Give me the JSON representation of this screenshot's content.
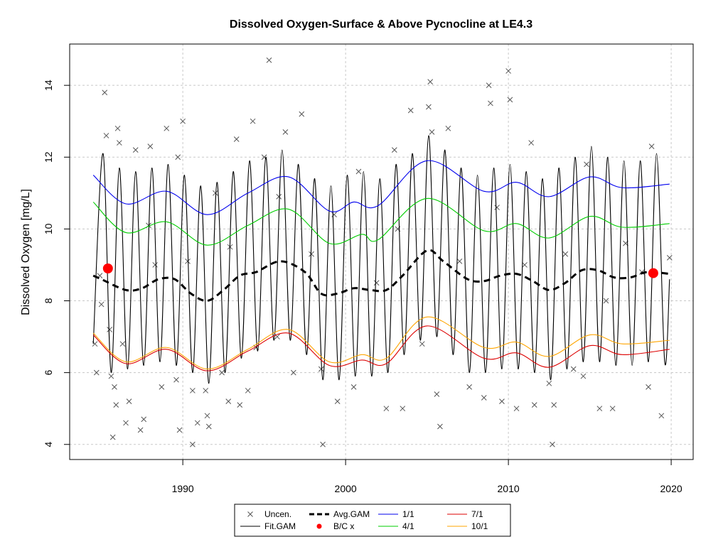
{
  "chart_data": {
    "type": "line",
    "title": "Dissolved Oxygen-Surface & Above Pycnocline at LE4.3",
    "y_label": "Dissolved Oxygen [mg/L]",
    "xlim": [
      1983.05,
      2021.35
    ],
    "ylim": [
      3.58,
      15.15
    ],
    "xticks": [
      1990,
      2000,
      2010,
      2020
    ],
    "yticks": [
      4,
      6,
      8,
      10,
      12,
      14
    ],
    "grid": true,
    "legend": "bottom",
    "series": [
      {
        "name": "Uncen.",
        "style": "points",
        "color": "#555555",
        "x": [
          1984.6,
          1984.7,
          1984.9,
          1985.0,
          1985.2,
          1985.3,
          1985.5,
          1985.6,
          1985.7,
          1985.8,
          1985.9,
          1986.0,
          1986.1,
          1986.3,
          1986.5,
          1986.7,
          1987.1,
          1987.4,
          1987.6,
          1988.0,
          1988.3,
          1988.7,
          1989.0,
          1989.6,
          1989.8,
          1989.7,
          1990.0,
          1990.6,
          1990.9,
          1990.6,
          1991.4,
          1991.5,
          1991.6,
          1992.0,
          1992.4,
          1992.8,
          1993.3,
          1993.5,
          1994.0,
          1994.3,
          1994.5,
          1995.0,
          1995.3,
          1995.8,
          1996.3,
          1996.8,
          1997.3,
          1998.5,
          1998.6,
          1999.5,
          2000.5,
          2000.8,
          2002.5,
          2003.0,
          2003.5,
          2004.0,
          2004.7,
          2005.1,
          2005.2,
          2005.3,
          2005.6,
          2005.8,
          2006.3,
          2007.6,
          2008.5,
          2008.8,
          2008.9,
          2009.6,
          2010.0,
          2010.1,
          2010.5,
          2011.4,
          2011.6,
          2012.5,
          2012.7,
          2012.8,
          2014.0,
          2014.6,
          2014.8,
          2015.6,
          2016.4,
          2018.2,
          2018.6,
          2018.8,
          2019.4,
          2019.9,
          1987.9,
          1992.9,
          1997.9,
          2001.9,
          2007.0,
          2011.0,
          2016.0,
          1999.3,
          2009.3,
          2003.2,
          1995.9,
          1990.3,
          2013.5,
          2017.2
        ],
        "values": [
          6.8,
          6.0,
          8.7,
          7.9,
          13.8,
          12.6,
          7.2,
          5.9,
          4.2,
          5.6,
          5.1,
          12.8,
          12.4,
          6.8,
          4.6,
          5.2,
          12.2,
          4.4,
          4.7,
          12.3,
          9.0,
          5.6,
          12.8,
          5.8,
          4.4,
          12.0,
          13.0,
          5.5,
          4.6,
          4.0,
          5.5,
          4.8,
          4.5,
          11.0,
          6.0,
          5.2,
          12.5,
          5.1,
          5.5,
          13.0,
          6.7,
          12.0,
          14.7,
          7.0,
          12.7,
          6.0,
          13.2,
          6.1,
          4.0,
          5.2,
          5.6,
          11.6,
          5.0,
          12.2,
          5.0,
          13.3,
          6.8,
          13.4,
          14.1,
          12.7,
          5.4,
          4.5,
          12.8,
          5.6,
          5.3,
          14.0,
          13.5,
          5.2,
          14.4,
          13.6,
          5.0,
          12.4,
          5.1,
          5.7,
          4.0,
          5.1,
          6.1,
          5.9,
          11.8,
          5.0,
          5.0,
          8.8,
          5.6,
          12.3,
          4.8,
          9.2,
          10.1,
          9.5,
          9.3,
          8.5,
          9.1,
          9.0,
          8.0,
          10.4,
          10.6,
          10.0,
          10.9,
          9.1,
          9.3,
          9.6
        ]
      },
      {
        "name": "Fit.GAM",
        "style": "line",
        "color": "#000000",
        "x": [
          1984.5,
          1985.1,
          1985.6,
          1986.1,
          1986.6,
          1987.1,
          1987.6,
          1988.1,
          1988.6,
          1989.1,
          1989.6,
          1990.1,
          1990.6,
          1991.1,
          1991.6,
          1992.1,
          1992.6,
          1993.1,
          1993.6,
          1994.1,
          1994.6,
          1995.1,
          1995.6,
          1996.1,
          1996.6,
          1997.1,
          1997.6,
          1998.1,
          1998.6,
          1999.1,
          1999.6,
          2000.1,
          2000.6,
          2001.1,
          2001.6,
          2002.1,
          2002.6,
          2003.1,
          2003.6,
          2004.1,
          2004.6,
          2005.1,
          2005.6,
          2006.1,
          2006.6,
          2007.1,
          2007.6,
          2008.1,
          2008.6,
          2009.1,
          2009.6,
          2010.1,
          2010.6,
          2011.1,
          2011.6,
          2012.1,
          2012.6,
          2013.1,
          2013.6,
          2014.1,
          2014.6,
          2015.1,
          2015.6,
          2016.1,
          2016.6,
          2017.1,
          2017.6,
          2018.1,
          2018.6,
          2019.1,
          2019.6,
          2019.9
        ],
        "values": [
          6.8,
          12.1,
          6.0,
          11.7,
          6.1,
          11.6,
          6.2,
          11.7,
          6.3,
          11.8,
          6.2,
          11.5,
          6.0,
          11.2,
          5.7,
          11.3,
          6.0,
          11.6,
          6.4,
          11.9,
          6.6,
          12.0,
          6.9,
          12.2,
          6.9,
          11.8,
          6.5,
          11.4,
          5.8,
          11.2,
          5.8,
          11.5,
          5.9,
          11.6,
          5.9,
          11.4,
          6.0,
          11.8,
          6.5,
          12.1,
          6.9,
          12.6,
          7.0,
          12.2,
          6.5,
          11.7,
          6.0,
          11.5,
          6.0,
          11.7,
          6.1,
          11.8,
          6.1,
          11.6,
          6.0,
          11.4,
          5.8,
          11.7,
          6.1,
          12.0,
          6.3,
          12.3,
          6.3,
          12.0,
          6.2,
          11.9,
          6.2,
          11.9,
          6.3,
          12.1,
          6.3,
          8.6
        ]
      },
      {
        "name": "Avg.GAM",
        "style": "dashed",
        "color": "#000000",
        "x": [
          1984.5,
          1985.0,
          1986.5,
          1987.5,
          1988.5,
          1989.5,
          1990.5,
          1991.5,
          1992.5,
          1993.5,
          1994.5,
          1996.0,
          1997.5,
          1998.5,
          1999.5,
          2000.5,
          2001.5,
          2002.5,
          2003.5,
          2005.0,
          2006.0,
          2007.5,
          2008.5,
          2009.5,
          2010.5,
          2011.5,
          2012.5,
          2013.5,
          2014.5,
          2015.5,
          2016.5,
          2017.5,
          2018.5,
          2019.9
        ],
        "values": [
          8.7,
          8.6,
          8.3,
          8.35,
          8.6,
          8.6,
          8.2,
          8.0,
          8.3,
          8.7,
          8.8,
          9.1,
          8.8,
          8.2,
          8.2,
          8.35,
          8.3,
          8.3,
          8.7,
          9.4,
          9.1,
          8.6,
          8.55,
          8.7,
          8.75,
          8.55,
          8.3,
          8.5,
          8.85,
          8.85,
          8.65,
          8.65,
          8.8,
          8.75
        ]
      },
      {
        "name": "B/C x",
        "style": "dot",
        "color": "#ff0000",
        "x": [
          1985.4,
          2018.9
        ],
        "values": [
          8.9,
          8.77
        ]
      },
      {
        "name": "1/1",
        "style": "line",
        "color": "#0000ee",
        "x": [
          1984.5,
          1986.5,
          1989,
          1991.5,
          1994,
          1996.5,
          1999,
          2000.5,
          2002,
          2005,
          2008.5,
          2010.5,
          2012.5,
          2015,
          2017,
          2019.9
        ],
        "values": [
          11.5,
          10.7,
          11.05,
          10.4,
          11.0,
          11.45,
          10.5,
          10.75,
          10.65,
          11.9,
          11.05,
          11.3,
          10.9,
          11.45,
          11.15,
          11.25
        ]
      },
      {
        "name": "4/1",
        "style": "line",
        "color": "#00cc00",
        "x": [
          1984.5,
          1986.5,
          1989,
          1991.5,
          1994,
          1996.5,
          1999,
          2001,
          2002,
          2005,
          2008.5,
          2010.5,
          2012.5,
          2015,
          2017,
          2019.9
        ],
        "values": [
          10.75,
          9.9,
          10.2,
          9.55,
          10.1,
          10.55,
          9.6,
          9.85,
          9.7,
          10.85,
          9.95,
          10.15,
          9.75,
          10.35,
          10.05,
          10.15
        ]
      },
      {
        "name": "7/1",
        "style": "line",
        "color": "#dd0000",
        "x": [
          1984.5,
          1986.5,
          1989,
          1991.5,
          1994,
          1996.5,
          1999,
          2001,
          2002.5,
          2005,
          2008.5,
          2010.5,
          2012.5,
          2015,
          2017,
          2019.9
        ],
        "values": [
          7.05,
          6.25,
          6.65,
          6.05,
          6.6,
          7.1,
          6.2,
          6.35,
          6.25,
          7.3,
          6.4,
          6.55,
          6.15,
          6.75,
          6.5,
          6.65
        ]
      },
      {
        "name": "10/1",
        "style": "line",
        "color": "#ffa500",
        "x": [
          1984.5,
          1986.5,
          1989,
          1991.5,
          1994,
          1996.5,
          1999,
          2001,
          2002.5,
          2005,
          2008.5,
          2010.5,
          2012.5,
          2015,
          2017,
          2019.9
        ],
        "values": [
          7.1,
          6.3,
          6.7,
          6.1,
          6.65,
          7.2,
          6.3,
          6.5,
          6.4,
          7.55,
          6.7,
          6.85,
          6.45,
          7.05,
          6.8,
          6.9
        ]
      }
    ]
  }
}
